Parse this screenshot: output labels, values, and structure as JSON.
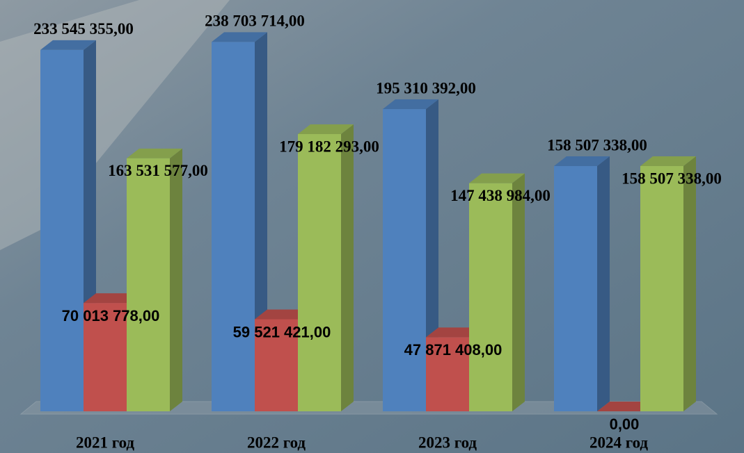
{
  "chart_data": {
    "type": "bar3d",
    "categories": [
      "2021 год",
      "2022 год",
      "2023 год",
      "2024 год"
    ],
    "series": [
      {
        "color": "#4f81bd",
        "values": [
          233545355.0,
          238703714.0,
          195310392.0,
          158507338.0
        ],
        "value_labels": [
          "233 545 355,00",
          "238 703 714,00",
          "195 310 392,00",
          "158 507 338,00"
        ]
      },
      {
        "color": "#c0504d",
        "values": [
          70013778.0,
          59521421.0,
          47871408.0,
          0
        ],
        "value_labels": [
          "70 013 778,00",
          "59 521 421,00",
          "47 871 408,00",
          "0,00"
        ]
      },
      {
        "color": "#9bbb59",
        "values": [
          163531577.0,
          179182293.0,
          147438984.0,
          158507338.0
        ],
        "value_labels": [
          "163 531 577,00",
          "179 182 293,00",
          "147 438 984,00",
          "158 507 338,00"
        ]
      }
    ],
    "ylim": [
      0,
      260000000
    ]
  }
}
